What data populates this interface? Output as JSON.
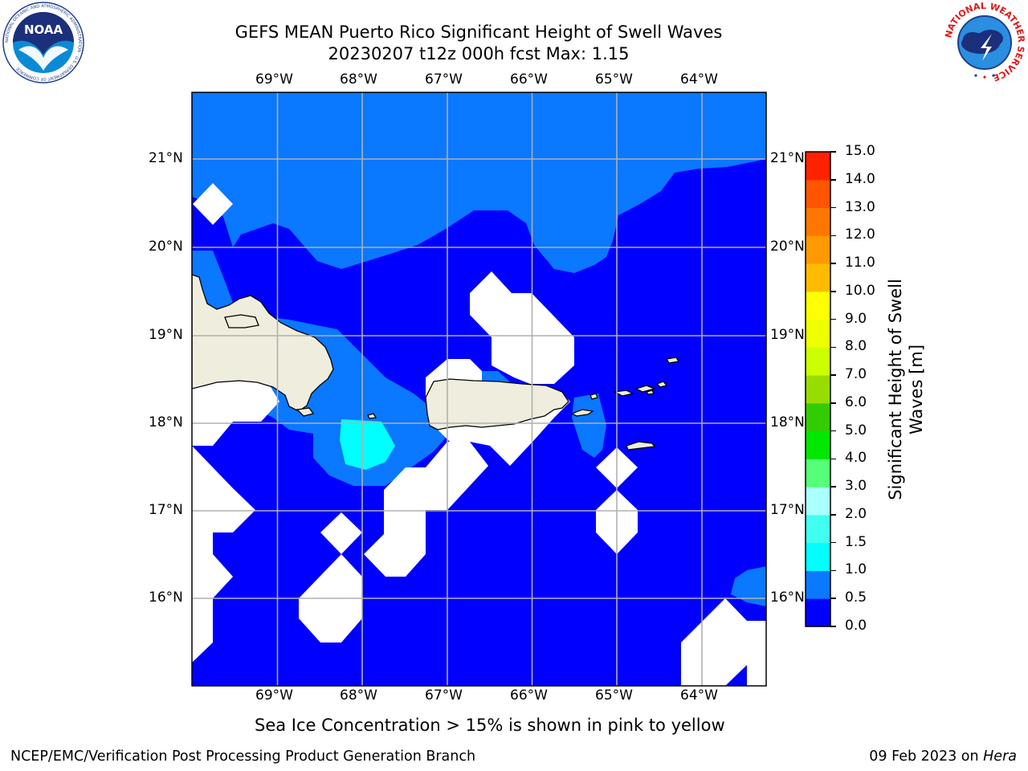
{
  "header": {
    "title_line1": "GEFS MEAN Puerto Rico Significant Height of Swell Waves",
    "title_line2": "20230207 t12z 000h fcst   Max: 1.15"
  },
  "logos": {
    "noaa_text": "NOAA",
    "noaa_ring_text": "NATIONAL OCEANIC AND ATMOSPHERIC ADMINISTRATION · U.S. DEPARTMENT OF COMMERCE",
    "nws_ring_text": "NATIONAL WEATHER SERVICE"
  },
  "map": {
    "lon_labels": [
      "69°W",
      "68°W",
      "67°W",
      "66°W",
      "65°W",
      "64°W"
    ],
    "lat_labels": [
      "21°N",
      "20°N",
      "19°N",
      "18°N",
      "17°N",
      "16°N"
    ],
    "lon_values": [
      -69,
      -68,
      -67,
      -66,
      -65,
      -64
    ],
    "lat_values": [
      21,
      20,
      19,
      18,
      17,
      16
    ],
    "lon_range": [
      -70.0,
      -63.25
    ],
    "lat_range": [
      15.0,
      21.75
    ],
    "colors": {
      "ocean_low": "#0000ff",
      "swell_0_5": "#0a78ff",
      "swell_1_0": "#00ffff",
      "land": "#efeddd",
      "grid": "#b0b0b0"
    }
  },
  "colorbar": {
    "label_line1": "Significant Height of Swell",
    "label_line2": "Waves [m]",
    "ticks": [
      "0.0",
      "0.5",
      "1.0",
      "1.5",
      "2.0",
      "3.0",
      "4.0",
      "5.0",
      "6.0",
      "7.0",
      "8.0",
      "9.0",
      "10.0",
      "11.0",
      "12.0",
      "13.0",
      "14.0",
      "15.0"
    ],
    "colors": [
      "#0000ff",
      "#0a78ff",
      "#00ffff",
      "#40ffef",
      "#aaffff",
      "#55ff77",
      "#00e800",
      "#33cc00",
      "#99dd00",
      "#ccff00",
      "#eeff00",
      "#ffff00",
      "#ffbb00",
      "#ff9900",
      "#ff7700",
      "#ff5500",
      "#ff2200"
    ]
  },
  "footer": {
    "note": "Sea Ice Concentration > 15% is shown in pink to yellow",
    "left": "NCEP/EMC/Verification Post Processing Product Generation Branch",
    "right_prefix": "09 Feb 2023 on ",
    "right_machine": "Hera"
  }
}
